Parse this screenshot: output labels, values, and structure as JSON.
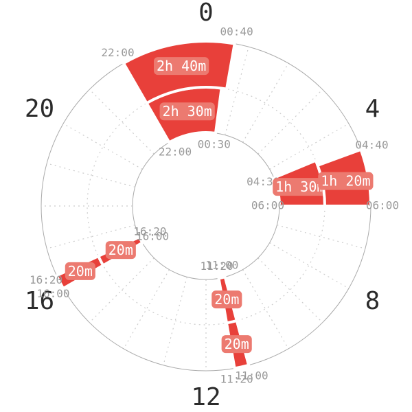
{
  "chart_data": {
    "type": "polar-clock",
    "hour_ticks": [
      0,
      4,
      8,
      12,
      16,
      20
    ],
    "color": "#e8403a",
    "rings": [
      {
        "segments": [
          {
            "start": "22:00",
            "end": "00:30",
            "label": "2h 30m"
          },
          {
            "start": "04:30",
            "end": "06:00",
            "label": "1h 30m"
          },
          {
            "start": "11:00",
            "end": "11:20",
            "label": "20m"
          },
          {
            "start": "16:00",
            "end": "16:20",
            "label": "20m"
          }
        ]
      },
      {
        "segments": [
          {
            "start": "22:00",
            "end": "00:40",
            "label": "2h 40m"
          },
          {
            "start": "04:40",
            "end": "06:00",
            "label": "1h 20m"
          },
          {
            "start": "11:00",
            "end": "11:20",
            "label": "20m"
          },
          {
            "start": "16:00",
            "end": "16:20",
            "label": "20m"
          }
        ]
      }
    ]
  }
}
